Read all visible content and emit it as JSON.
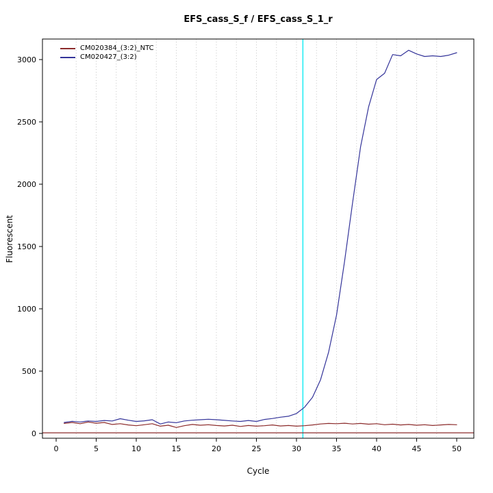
{
  "chart_data": {
    "type": "line",
    "title": "EFS_cass_S_f / EFS_cass_S_1_r",
    "xlabel": "Cycle",
    "ylabel": "Fluorescent",
    "xlim": [
      0,
      50
    ],
    "ylim": [
      0,
      3150
    ],
    "xticks": [
      0,
      5,
      10,
      15,
      20,
      25,
      30,
      35,
      40,
      45,
      50
    ],
    "yticks": [
      0,
      500,
      1000,
      1500,
      2000,
      2500,
      3000
    ],
    "grid": "vertical-dotted",
    "grid_step": 2.5,
    "grid_color": "#c9c9c9",
    "legend_position": "top-left",
    "threshold_line": {
      "y": 5,
      "color": "#8b2a2a"
    },
    "ct_line": {
      "x": 30.8,
      "color": "#00eaf2"
    },
    "x": [
      1,
      2,
      3,
      4,
      5,
      6,
      7,
      8,
      9,
      10,
      11,
      12,
      13,
      14,
      15,
      16,
      17,
      18,
      19,
      20,
      21,
      22,
      23,
      24,
      25,
      26,
      27,
      28,
      29,
      30,
      31,
      32,
      33,
      34,
      35,
      36,
      37,
      38,
      39,
      40,
      41,
      42,
      43,
      44,
      45,
      46,
      47,
      48,
      49,
      50
    ],
    "series": [
      {
        "name": "CM020384_(3:2)_NTC",
        "color": "#8b2a2a",
        "values": [
          80,
          88,
          78,
          92,
          82,
          88,
          72,
          78,
          68,
          62,
          70,
          78,
          58,
          66,
          48,
          62,
          72,
          66,
          70,
          64,
          60,
          66,
          56,
          64,
          58,
          62,
          68,
          60,
          64,
          58,
          62,
          68,
          76,
          80,
          78,
          82,
          76,
          80,
          74,
          78,
          70,
          74,
          68,
          72,
          66,
          70,
          64,
          68,
          72,
          70
        ]
      },
      {
        "name": "CM020427_(3:2)",
        "color": "#333399",
        "values": [
          88,
          97,
          92,
          100,
          96,
          104,
          100,
          118,
          106,
          96,
          101,
          110,
          76,
          92,
          86,
          100,
          106,
          110,
          114,
          110,
          105,
          100,
          96,
          104,
          96,
          112,
          120,
          130,
          138,
          160,
          210,
          290,
          430,
          650,
          950,
          1380,
          1850,
          2300,
          2620,
          2840,
          2890,
          3040,
          3030,
          3075,
          3045,
          3025,
          3030,
          3025,
          3035,
          3055
        ]
      }
    ]
  }
}
